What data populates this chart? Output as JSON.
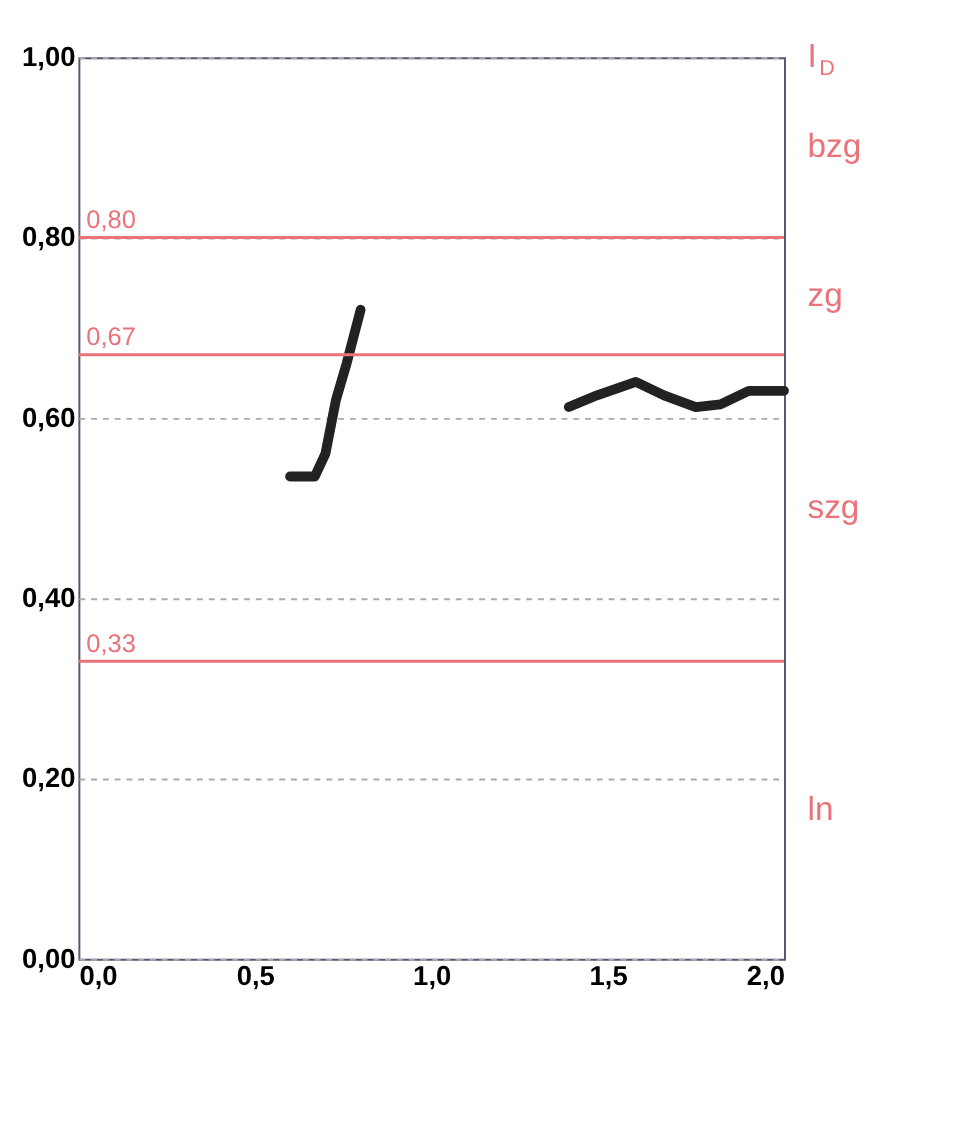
{
  "chart_data": {
    "type": "line",
    "xlim": [
      0,
      2
    ],
    "xticks": [
      {
        "value": 0,
        "label": "0,0"
      },
      {
        "value": 0.5,
        "label": "0,5"
      },
      {
        "value": 1,
        "label": "1,0"
      },
      {
        "value": 1.5,
        "label": "1,5"
      },
      {
        "value": 2,
        "label": "2,0"
      }
    ],
    "ylim": [
      0,
      1
    ],
    "yticks": [
      {
        "value": 0,
        "label": "0,00"
      },
      {
        "value": 0.2,
        "label": "0,20"
      },
      {
        "value": 0.4,
        "label": "0,40"
      },
      {
        "value": 0.6,
        "label": "0,60"
      },
      {
        "value": 0.8,
        "label": "0,80"
      },
      {
        "value": 1,
        "label": "1,00"
      }
    ],
    "y2label": "I$_{D}$",
    "grid": "y",
    "marker": "none",
    "line_style": "solid",
    "series": [
      {
        "color": "#222222",
        "x": [
          0.6,
          0.67,
          0.7,
          0.73,
          0.76,
          0.8
        ],
        "values": [
          0.535,
          0.535,
          0.56,
          0.62,
          0.66,
          0.72
        ]
      },
      {
        "color": "#222222",
        "x": [
          1.39,
          1.47,
          1.58,
          1.66,
          1.75,
          1.82,
          1.9,
          2.0
        ],
        "values": [
          0.612,
          0.625,
          0.64,
          0.625,
          0.612,
          0.615,
          0.63,
          0.63
        ]
      }
    ],
    "ref_lines": [
      {
        "axis": "y",
        "value": 0.33,
        "label": "0,33",
        "color": "#e8737a"
      },
      {
        "axis": "y",
        "value": 0.67,
        "label": "0,67",
        "color": "#e8737a"
      },
      {
        "axis": "y",
        "value": 0.8,
        "label": "0,80",
        "color": "#e8737a"
      }
    ],
    "annotations": [
      "ln",
      "szg",
      "zg",
      "bzg"
    ]
  }
}
